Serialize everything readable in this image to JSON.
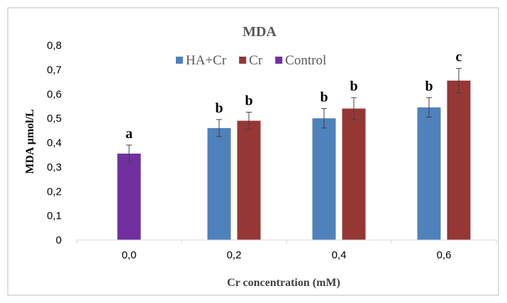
{
  "chart_data": {
    "type": "bar",
    "title": "MDA",
    "xlabel": "Cr concentration (mM)",
    "ylabel": "MDA µmol/L",
    "categories": [
      "0,0",
      "0,2",
      "0,4",
      "0,6"
    ],
    "ylim": [
      0,
      0.8
    ],
    "yticks": [
      "0",
      "0,1",
      "0,2",
      "0,3",
      "0,4",
      "0,5",
      "0,6",
      "0,7",
      "0,8"
    ],
    "grid": false,
    "legend_position": "top",
    "series": [
      {
        "name": "HA+Cr",
        "color": "#4F81BD",
        "values": [
          null,
          0.46,
          0.5,
          0.545
        ],
        "errors": [
          null,
          0.035,
          0.04,
          0.04
        ],
        "labels": [
          null,
          "b",
          "b",
          "b"
        ]
      },
      {
        "name": "Cr",
        "color": "#953735",
        "values": [
          null,
          0.49,
          0.54,
          0.655
        ],
        "errors": [
          null,
          0.035,
          0.045,
          0.05
        ],
        "labels": [
          null,
          "b",
          "b",
          "c"
        ]
      },
      {
        "name": "Control",
        "color": "#7030A0",
        "values": [
          0.355,
          null,
          null,
          null
        ],
        "errors": [
          0.035,
          null,
          null,
          null
        ],
        "labels": [
          "a",
          null,
          null,
          null
        ]
      }
    ]
  }
}
